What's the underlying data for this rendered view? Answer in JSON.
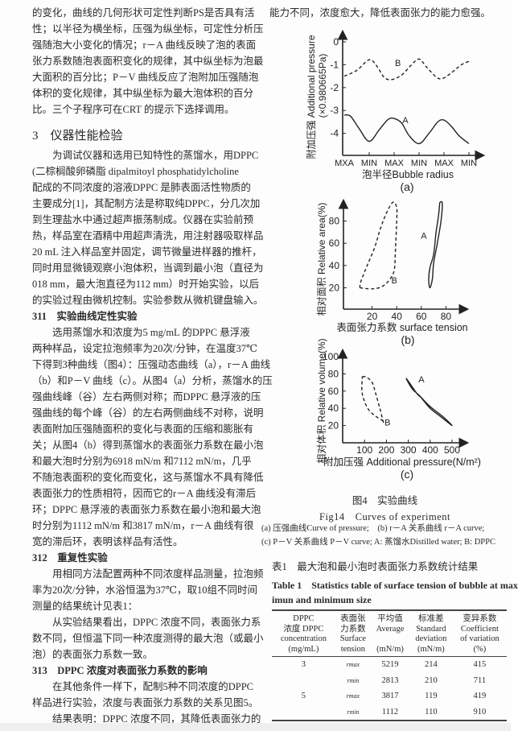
{
  "left_column": [
    {
      "t": "的变化，曲线的几何形状可定性判断PS是否具有活"
    },
    {
      "t": "性；以半径为横坐标，压强为纵坐标，可定性分析压"
    },
    {
      "t": "强随泡大小变化的情况；r－A 曲线反映了泡的表面"
    },
    {
      "t": "张力系数随泡表面积变化的规律，其中纵坐标为泡最"
    },
    {
      "t": "大面积的百分比；P－V 曲线反应了泡附加压强随泡"
    },
    {
      "t": "体积的变化规律，其中纵坐标为最大泡体积的百分"
    },
    {
      "t": "比。三个子程序可在CRT 的提示下选择调用。"
    },
    {
      "t": "3　仪器性能检验",
      "k": "h1"
    },
    {
      "t": "为调试仪器和选用已知特性的蒸馏水，用DPPC",
      "k": "ind"
    },
    {
      "t": "(二棕榈酸卵磷脂 dipalmitoyl phosphatidylcholine"
    },
    {
      "t": "配成的不同浓度的溶液DPPC 是肺表面活性物质的"
    },
    {
      "t": "主要成分[1]，其配制方法是称取纯DPPC，分几次加"
    },
    {
      "t": "到生理盐水中通过超声振荡制成。仪器在实验前预"
    },
    {
      "t": "热，样品室在酒精中用超声清洗，用注射器吸取样品"
    },
    {
      "t": "20 mL 注入样品室并固定，调节微量进样器的推杆，"
    },
    {
      "t": "同时用显微镜观察小泡体积，当调到最小泡（直径为"
    },
    {
      "t": "018 mm，最大泡直径为112 mm）时开始实验，以后"
    },
    {
      "t": "的实验过程由微机控制。实验参数从微机键盘输入。"
    },
    {
      "t": "311　实验曲线定性实验",
      "k": "h2"
    },
    {
      "t": "选用蒸馏水和浓度为5 mg/mL 的DPPC 悬浮液",
      "k": "ind"
    },
    {
      "t": "两种样品，设定拉泡频率为20次/分钟，在温度37℃"
    },
    {
      "t": "下得到3种曲线（图4）：压强动态曲线（a），r－A 曲线"
    },
    {
      "t": "（b）和P－V 曲线（c）。从图4（a）分析，蒸馏水的压"
    },
    {
      "t": "强曲线峰（谷）左右两侧对称；而DPPC 悬浮液的压"
    },
    {
      "t": "强曲线的每个峰（谷）的左右两侧曲线不对称，说明"
    },
    {
      "t": "表面附加压强随面积的变化与表面的压缩和膨胀有"
    },
    {
      "t": "关；从图4（b）得到蒸馏水的表面张力系数在最小泡"
    },
    {
      "t": "和最大泡时分别为6918 mN/m 和7112 mN/m，几乎"
    },
    {
      "t": "不随泡表面积的变化而变化，这与蒸馏水不具有降低"
    },
    {
      "t": "表面张力的性质相符，因而它的r－A 曲线没有滞后"
    },
    {
      "t": "环；DPPC 悬浮液的表面张力系数在最小泡和最大泡"
    },
    {
      "t": "时分别为1112 mN/m 和3817 mN/m，r－A 曲线有很"
    },
    {
      "t": "宽的滞后环，表明该样品有活性。"
    },
    {
      "t": "312　重复性实验",
      "k": "h2"
    },
    {
      "t": "用相同方法配置两种不同浓度样品测量，拉泡频",
      "k": "ind"
    },
    {
      "t": "率为20次/分钟，水浴恒温为37℃，取10组不同时间"
    },
    {
      "t": "测量的结果统计见表1："
    },
    {
      "t": "从实验结果看出，DPPC 浓度不同，表面张力系",
      "k": "ind"
    },
    {
      "t": "数不同，但恒温下同一种浓度测得的最大泡（或最小"
    },
    {
      "t": "泡）的表面张力系数一致。"
    },
    {
      "t": "313　DPPC 浓度对表面张力系数的影响",
      "k": "h2"
    },
    {
      "t": "在其他条件一样下，配制5种不同浓度的DPPC",
      "k": "ind"
    },
    {
      "t": "样品进行实验，浓度与表面张力系数的关系见图5。"
    },
    {
      "t": "结果表明：DPPC 浓度不同，其降低表面张力的",
      "k": "ind"
    }
  ],
  "right_top_line": "能力不同，浓度愈大，降低表面张力的能力愈强。",
  "figures": {
    "a": {
      "label": "(a)",
      "ylabel_cn": "附加压强 Additional pressure",
      "ylabel_unit": "(×0.980665Pa)",
      "xlabel": "泡半径Bubble radius",
      "x_ticks": [
        "MXA",
        "MIN",
        "MAX",
        "MIN",
        "MAX",
        "MIN"
      ],
      "y_ticks": [
        0,
        -1,
        -2,
        -3,
        -4
      ],
      "ylim": [
        -4.9,
        0.3
      ],
      "series": [
        {
          "name": "A",
          "style": "solid",
          "points": [
            [
              0,
              -3.2
            ],
            [
              0.25,
              -3.25
            ],
            [
              0.6,
              -3.8
            ],
            [
              1,
              -4.35
            ],
            [
              1.4,
              -3.85
            ],
            [
              1.75,
              -3.4
            ],
            [
              2,
              -3.35
            ],
            [
              2.3,
              -3.55
            ],
            [
              2.6,
              -4.1
            ],
            [
              3,
              -4.45
            ],
            [
              3.4,
              -4.0
            ],
            [
              3.75,
              -3.5
            ],
            [
              4,
              -3.42
            ],
            [
              4.3,
              -3.7
            ],
            [
              4.6,
              -4.1
            ],
            [
              5,
              -4.45
            ]
          ]
        },
        {
          "name": "B",
          "style": "dashed",
          "points": [
            [
              0,
              -1.5
            ],
            [
              0.5,
              -1.25
            ],
            [
              1,
              -0.78
            ],
            [
              1.3,
              -1.05
            ],
            [
              1.6,
              -1.55
            ],
            [
              1.9,
              -1.65
            ],
            [
              2.3,
              -1.45
            ],
            [
              2.7,
              -1.0
            ],
            [
              3,
              -0.75
            ],
            [
              3.3,
              -1.1
            ],
            [
              3.7,
              -1.55
            ],
            [
              3.95,
              -1.6
            ],
            [
              4.3,
              -1.35
            ],
            [
              4.7,
              -1.0
            ],
            [
              5,
              -0.85
            ]
          ]
        }
      ],
      "series_labels": [
        {
          "name": "A",
          "at": [
            2.45,
            -3.55
          ]
        },
        {
          "name": "B",
          "at": [
            2.15,
            -1.05
          ]
        }
      ]
    },
    "b": {
      "label": "(b)",
      "ylabel": "相对面积 Relative area(%)",
      "xlabel": "表面张力系数 surface tension",
      "x_ticks": [
        20,
        40,
        60,
        80
      ],
      "y_ticks": [
        20,
        40,
        60,
        80
      ],
      "xlim": [
        0,
        92
      ],
      "ylim": [
        0,
        103
      ],
      "series": [
        {
          "name": "A",
          "style": "solid",
          "points": [
            [
              75,
              97
            ],
            [
              77,
              96
            ],
            [
              76,
              80
            ],
            [
              73,
              60
            ],
            [
              70,
              42
            ],
            [
              69,
              28
            ],
            [
              67,
              20
            ],
            [
              66,
              27
            ],
            [
              67,
              38
            ],
            [
              70,
              50
            ],
            [
              72,
              70
            ],
            [
              74,
              85
            ],
            [
              75,
              97
            ]
          ]
        },
        {
          "name": "B",
          "style": "dashed",
          "points": [
            [
              10,
              20
            ],
            [
              20,
              19
            ],
            [
              28,
              21
            ],
            [
              34,
              27
            ],
            [
              38,
              36
            ],
            [
              39,
              55
            ],
            [
              40,
              80
            ],
            [
              40,
              92
            ],
            [
              37,
              97
            ],
            [
              32,
              88
            ],
            [
              27,
              74
            ],
            [
              22,
              56
            ],
            [
              16,
              40
            ],
            [
              11,
              26
            ],
            [
              10,
              20
            ]
          ]
        }
      ],
      "series_labels": [
        {
          "name": "A",
          "at": [
            62,
            64
          ]
        },
        {
          "name": "B",
          "at": [
            38,
            24
          ]
        }
      ]
    },
    "c": {
      "label": "(c)",
      "ylabel": "相对体积 Relative volume(%)",
      "xlabel": "附加压强 Additional pressure(N/m²)",
      "x_ticks": [
        100,
        200,
        300,
        400,
        500
      ],
      "y_ticks": [
        20,
        40,
        60,
        80,
        100
      ],
      "xlim": [
        0,
        560
      ],
      "ylim": [
        0,
        110
      ],
      "series": [
        {
          "name": "A",
          "style": "solid",
          "points": [
            [
              290,
              75
            ],
            [
              310,
              68
            ],
            [
              340,
              57
            ],
            [
              360,
              52
            ],
            [
              400,
              40
            ],
            [
              450,
              30
            ],
            [
              500,
              20
            ],
            [
              460,
              30
            ],
            [
              400,
              42
            ],
            [
              350,
              55
            ],
            [
              320,
              62
            ],
            [
              300,
              70
            ],
            [
              290,
              75
            ]
          ]
        },
        {
          "name": "B",
          "style": "dashed",
          "points": [
            [
              90,
              77
            ],
            [
              110,
              76
            ],
            [
              135,
              70
            ],
            [
              150,
              58
            ],
            [
              170,
              40
            ],
            [
              185,
              25
            ],
            [
              190,
              24
            ],
            [
              175,
              27
            ],
            [
              150,
              31
            ],
            [
              120,
              38
            ],
            [
              100,
              48
            ],
            [
              88,
              60
            ],
            [
              90,
              77
            ]
          ]
        }
      ],
      "series_labels": [
        {
          "name": "A",
          "at": [
            360,
            70
          ]
        },
        {
          "name": "B",
          "at": [
            205,
            20
          ]
        }
      ]
    }
  },
  "figure_caption": {
    "cn": "图4　实验曲线",
    "en": "Fig14　Curves of experiment",
    "note1": "(a) 压强曲线Curve of pressure;　(b) r－A 关系曲线 r－A curve;",
    "note2": "(c) P－V 关系曲线 P－V curve; A: 蒸馏水Distilled water; B: DPPC"
  },
  "table": {
    "title_cn": "表1　最大泡和最小泡时表面张力系数统计结果",
    "title_en_1": "Table 1　Statistics table of surface tension of bubble at max",
    "title_en_2": "imun and minimum size",
    "headers": [
      [
        "DPPC",
        "浓度 DPPC",
        "concentration",
        "(mg/mL)"
      ],
      [
        "表面张",
        "力系数",
        "Surface",
        "tension"
      ],
      [
        "平均值",
        "Average",
        "",
        "(mN/m)"
      ],
      [
        "标准差",
        "Standard",
        "deviation",
        "(mN/m)"
      ],
      [
        "变异系数",
        "Coefficient",
        "of variation",
        "(%)"
      ]
    ],
    "rows": [
      [
        "3",
        "rmax",
        "5219",
        "214",
        "415"
      ],
      [
        "",
        "rmin",
        "2813",
        "210",
        "711"
      ],
      [
        "5",
        "rmax",
        "3817",
        "119",
        "419"
      ],
      [
        "",
        "rmin",
        "1112",
        "110",
        "910"
      ]
    ]
  }
}
